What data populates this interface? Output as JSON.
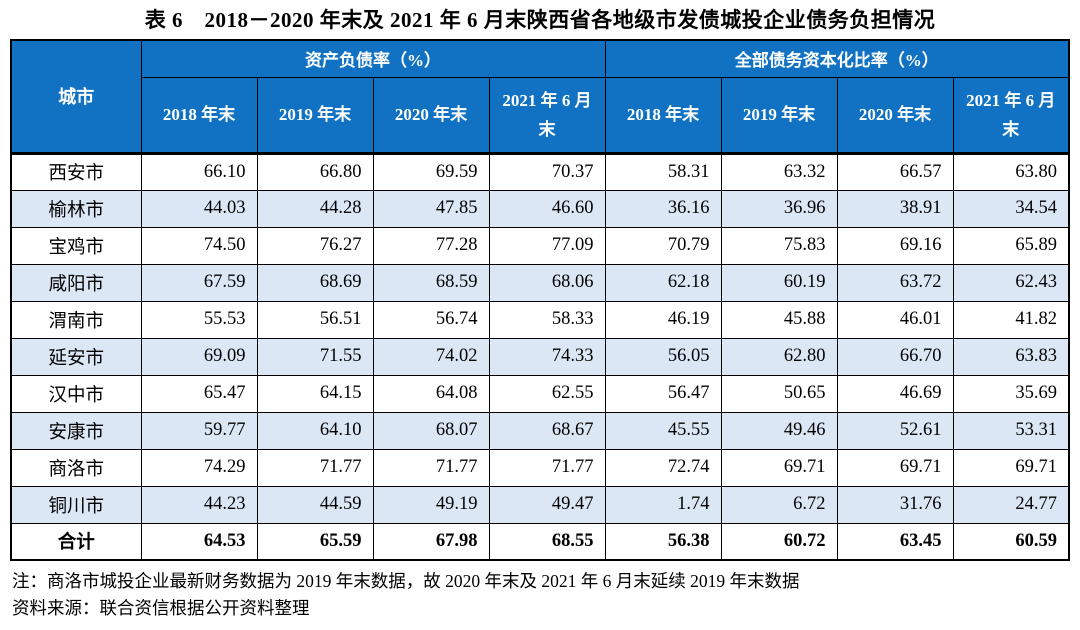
{
  "title": "表 6　2018－2020 年末及 2021 年 6 月末陕西省各地级市发债城投企业债务负担情况",
  "table": {
    "city_header": "城市",
    "groups": [
      {
        "label": "资产负债率（%）",
        "sub": [
          "2018 年末",
          "2019 年末",
          "2020 年末",
          "2021 年 6 月末"
        ]
      },
      {
        "label": "全部债务资本化比率（%）",
        "sub": [
          "2018 年末",
          "2019 年末",
          "2020 年末",
          "2021 年 6 月末"
        ]
      }
    ],
    "rows": [
      {
        "city": "西安市",
        "values": [
          "66.10",
          "66.80",
          "69.59",
          "70.37",
          "58.31",
          "63.32",
          "66.57",
          "63.80"
        ]
      },
      {
        "city": "榆林市",
        "values": [
          "44.03",
          "44.28",
          "47.85",
          "46.60",
          "36.16",
          "36.96",
          "38.91",
          "34.54"
        ]
      },
      {
        "city": "宝鸡市",
        "values": [
          "74.50",
          "76.27",
          "77.28",
          "77.09",
          "70.79",
          "75.83",
          "69.16",
          "65.89"
        ]
      },
      {
        "city": "咸阳市",
        "values": [
          "67.59",
          "68.69",
          "68.59",
          "68.06",
          "62.18",
          "60.19",
          "63.72",
          "62.43"
        ]
      },
      {
        "city": "渭南市",
        "values": [
          "55.53",
          "56.51",
          "56.74",
          "58.33",
          "46.19",
          "45.88",
          "46.01",
          "41.82"
        ]
      },
      {
        "city": "延安市",
        "values": [
          "69.09",
          "71.55",
          "74.02",
          "74.33",
          "56.05",
          "62.80",
          "66.70",
          "63.83"
        ]
      },
      {
        "city": "汉中市",
        "values": [
          "65.47",
          "64.15",
          "64.08",
          "62.55",
          "56.47",
          "50.65",
          "46.69",
          "35.69"
        ]
      },
      {
        "city": "安康市",
        "values": [
          "59.77",
          "64.10",
          "68.07",
          "68.67",
          "45.55",
          "49.46",
          "52.61",
          "53.31"
        ]
      },
      {
        "city": "商洛市",
        "values": [
          "74.29",
          "71.77",
          "71.77",
          "71.77",
          "72.74",
          "69.71",
          "69.71",
          "69.71"
        ]
      },
      {
        "city": "铜川市",
        "values": [
          "44.23",
          "44.59",
          "49.19",
          "49.47",
          "1.74",
          "6.72",
          "31.76",
          "24.77"
        ]
      }
    ],
    "total_row": {
      "city": "合计",
      "values": [
        "64.53",
        "65.59",
        "67.98",
        "68.55",
        "56.38",
        "60.72",
        "63.45",
        "60.59"
      ]
    }
  },
  "notes": [
    "注：商洛市城投企业最新财务数据为 2019 年末数据，故 2020 年末及 2021 年 6 月末延续 2019 年末数据",
    "资料来源：联合资信根据公开资料整理"
  ],
  "colors": {
    "header_bg": "#1172C3",
    "alt_row_bg": "#DCE7F5",
    "header_text": "#FFFFFF",
    "body_text": "#000000"
  },
  "chart_data": {
    "type": "table",
    "title": "表 6　2018－2020 年末及 2021 年 6 月末陕西省各地级市发债城投企业债务负担情况",
    "column_groups": [
      "资产负债率（%）",
      "全部债务资本化比率（%）"
    ],
    "columns": [
      "城市",
      "资产负债率 2018 年末",
      "资产负债率 2019 年末",
      "资产负债率 2020 年末",
      "资产负债率 2021 年 6 月末",
      "全部债务资本化比率 2018 年末",
      "全部债务资本化比率 2019 年末",
      "全部债务资本化比率 2020 年末",
      "全部债务资本化比率 2021 年 6 月末"
    ],
    "rows": [
      [
        "西安市",
        66.1,
        66.8,
        69.59,
        70.37,
        58.31,
        63.32,
        66.57,
        63.8
      ],
      [
        "榆林市",
        44.03,
        44.28,
        47.85,
        46.6,
        36.16,
        36.96,
        38.91,
        34.54
      ],
      [
        "宝鸡市",
        74.5,
        76.27,
        77.28,
        77.09,
        70.79,
        75.83,
        69.16,
        65.89
      ],
      [
        "咸阳市",
        67.59,
        68.69,
        68.59,
        68.06,
        62.18,
        60.19,
        63.72,
        62.43
      ],
      [
        "渭南市",
        55.53,
        56.51,
        56.74,
        58.33,
        46.19,
        45.88,
        46.01,
        41.82
      ],
      [
        "延安市",
        69.09,
        71.55,
        74.02,
        74.33,
        56.05,
        62.8,
        66.7,
        63.83
      ],
      [
        "汉中市",
        65.47,
        64.15,
        64.08,
        62.55,
        56.47,
        50.65,
        46.69,
        35.69
      ],
      [
        "安康市",
        59.77,
        64.1,
        68.07,
        68.67,
        45.55,
        49.46,
        52.61,
        53.31
      ],
      [
        "商洛市",
        74.29,
        71.77,
        71.77,
        71.77,
        72.74,
        69.71,
        69.71,
        69.71
      ],
      [
        "铜川市",
        44.23,
        44.59,
        49.19,
        49.47,
        1.74,
        6.72,
        31.76,
        24.77
      ],
      [
        "合计",
        64.53,
        65.59,
        67.98,
        68.55,
        56.38,
        60.72,
        63.45,
        60.59
      ]
    ]
  }
}
